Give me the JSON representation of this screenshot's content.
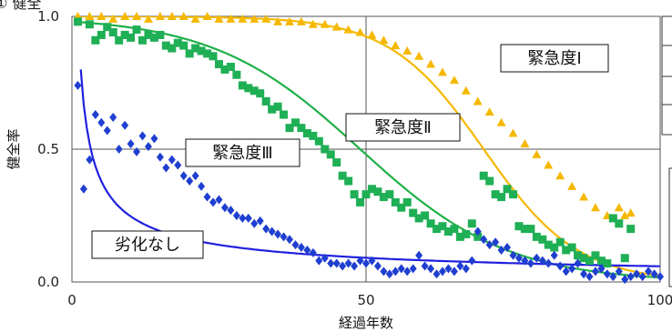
{
  "header": {
    "partial_title": "① 健全"
  },
  "chart_data": {
    "type": "scatter",
    "xlabel": "経過年数",
    "ylabel": "健全率",
    "xlim": [
      0,
      100
    ],
    "ylim": [
      0,
      1.0
    ],
    "x_ticks": [
      "0",
      "50",
      "100"
    ],
    "y_ticks": [
      "0.0",
      "0.5",
      "1.0"
    ],
    "grid": true,
    "series": [
      {
        "name": "緊急度Ⅰ",
        "marker": "triangle",
        "color": "#F5B800",
        "line_color": "#F5B800",
        "curve": {
          "type": "logistic",
          "x0": 70,
          "k": 0.125
        },
        "points": [
          [
            1,
            1.0
          ],
          [
            3,
            1.0
          ],
          [
            5,
            1.0
          ],
          [
            7,
            0.99
          ],
          [
            9,
            1.0
          ],
          [
            11,
            1.0
          ],
          [
            13,
            0.99
          ],
          [
            15,
            1.0
          ],
          [
            17,
            1.0
          ],
          [
            19,
            1.0
          ],
          [
            21,
            0.99
          ],
          [
            23,
            1.0
          ],
          [
            25,
            0.99
          ],
          [
            27,
            0.99
          ],
          [
            29,
            0.99
          ],
          [
            31,
            0.99
          ],
          [
            33,
            0.99
          ],
          [
            35,
            0.98
          ],
          [
            37,
            0.98
          ],
          [
            39,
            0.98
          ],
          [
            41,
            0.97
          ],
          [
            43,
            0.97
          ],
          [
            45,
            0.96
          ],
          [
            47,
            0.95
          ],
          [
            49,
            0.94
          ],
          [
            51,
            0.93
          ],
          [
            53,
            0.91
          ],
          [
            55,
            0.89
          ],
          [
            57,
            0.87
          ],
          [
            59,
            0.85
          ],
          [
            61,
            0.82
          ],
          [
            63,
            0.79
          ],
          [
            65,
            0.76
          ],
          [
            67,
            0.72
          ],
          [
            69,
            0.68
          ],
          [
            71,
            0.64
          ],
          [
            73,
            0.6
          ],
          [
            75,
            0.56
          ],
          [
            77,
            0.52
          ],
          [
            79,
            0.48
          ],
          [
            81,
            0.44
          ],
          [
            83,
            0.4
          ],
          [
            85,
            0.36
          ],
          [
            87,
            0.32
          ],
          [
            89,
            0.28
          ],
          [
            91,
            0.25
          ],
          [
            93,
            0.28
          ],
          [
            94,
            0.25
          ],
          [
            95,
            0.26
          ]
        ]
      },
      {
        "name": "緊急度Ⅱ",
        "marker": "square",
        "color": "#1FAF55",
        "line_color": "#1FB048",
        "curve": {
          "type": "logistic",
          "x0": 49,
          "k": 0.08
        },
        "points": [
          [
            1,
            0.98
          ],
          [
            3,
            0.97
          ],
          [
            4,
            0.91
          ],
          [
            5,
            0.93
          ],
          [
            6,
            0.96
          ],
          [
            7,
            0.94
          ],
          [
            8,
            0.91
          ],
          [
            9,
            0.93
          ],
          [
            10,
            0.92
          ],
          [
            11,
            0.95
          ],
          [
            12,
            0.91
          ],
          [
            13,
            0.93
          ],
          [
            14,
            0.92
          ],
          [
            15,
            0.93
          ],
          [
            16,
            0.89
          ],
          [
            17,
            0.88
          ],
          [
            18,
            0.9
          ],
          [
            19,
            0.89
          ],
          [
            20,
            0.86
          ],
          [
            21,
            0.88
          ],
          [
            22,
            0.87
          ],
          [
            23,
            0.86
          ],
          [
            24,
            0.85
          ],
          [
            25,
            0.82
          ],
          [
            26,
            0.8
          ],
          [
            27,
            0.81
          ],
          [
            28,
            0.78
          ],
          [
            29,
            0.74
          ],
          [
            30,
            0.73
          ],
          [
            31,
            0.72
          ],
          [
            32,
            0.71
          ],
          [
            33,
            0.68
          ],
          [
            34,
            0.65
          ],
          [
            35,
            0.66
          ],
          [
            36,
            0.63
          ],
          [
            37,
            0.58
          ],
          [
            38,
            0.6
          ],
          [
            39,
            0.58
          ],
          [
            40,
            0.56
          ],
          [
            41,
            0.55
          ],
          [
            42,
            0.53
          ],
          [
            43,
            0.5
          ],
          [
            44,
            0.48
          ],
          [
            45,
            0.45
          ],
          [
            46,
            0.4
          ],
          [
            47,
            0.38
          ],
          [
            48,
            0.33
          ],
          [
            49,
            0.3
          ],
          [
            50,
            0.33
          ],
          [
            51,
            0.35
          ],
          [
            52,
            0.34
          ],
          [
            53,
            0.32
          ],
          [
            54,
            0.33
          ],
          [
            55,
            0.3
          ],
          [
            56,
            0.28
          ],
          [
            57,
            0.3
          ],
          [
            58,
            0.26
          ],
          [
            59,
            0.24
          ],
          [
            60,
            0.25
          ],
          [
            61,
            0.22
          ],
          [
            62,
            0.2
          ],
          [
            63,
            0.21
          ],
          [
            64,
            0.19
          ],
          [
            65,
            0.2
          ],
          [
            66,
            0.17
          ],
          [
            67,
            0.18
          ],
          [
            68,
            0.22
          ],
          [
            69,
            0.17
          ],
          [
            70,
            0.4
          ],
          [
            71,
            0.38
          ],
          [
            72,
            0.33
          ],
          [
            73,
            0.32
          ],
          [
            74,
            0.35
          ],
          [
            75,
            0.33
          ],
          [
            76,
            0.21
          ],
          [
            77,
            0.2
          ],
          [
            78,
            0.2
          ],
          [
            79,
            0.17
          ],
          [
            80,
            0.16
          ],
          [
            81,
            0.14
          ],
          [
            82,
            0.13
          ],
          [
            83,
            0.15
          ],
          [
            84,
            0.12
          ],
          [
            85,
            0.13
          ],
          [
            86,
            0.1
          ],
          [
            87,
            0.09
          ],
          [
            88,
            0.08
          ],
          [
            89,
            0.1
          ],
          [
            90,
            0.08
          ],
          [
            91,
            0.07
          ],
          [
            92,
            0.24
          ],
          [
            93,
            0.22
          ],
          [
            94,
            0.09
          ],
          [
            95,
            0.2
          ]
        ]
      },
      {
        "name": "緊急度Ⅲ",
        "marker": "diamond",
        "color": "#1F3FD0",
        "line_color": "#2020E0",
        "curve": {
          "type": "power",
          "a": 0.8,
          "b": 0.62,
          "x0": 1.5
        },
        "points": [
          [
            1,
            0.74
          ],
          [
            2,
            0.35
          ],
          [
            3,
            0.46
          ],
          [
            4,
            0.63
          ],
          [
            5,
            0.6
          ],
          [
            6,
            0.57
          ],
          [
            7,
            0.62
          ],
          [
            8,
            0.5
          ],
          [
            9,
            0.59
          ],
          [
            10,
            0.52
          ],
          [
            11,
            0.49
          ],
          [
            12,
            0.55
          ],
          [
            13,
            0.51
          ],
          [
            14,
            0.54
          ],
          [
            15,
            0.47
          ],
          [
            16,
            0.43
          ],
          [
            17,
            0.46
          ],
          [
            18,
            0.44
          ],
          [
            19,
            0.4
          ],
          [
            20,
            0.38
          ],
          [
            21,
            0.4
          ],
          [
            22,
            0.36
          ],
          [
            23,
            0.32
          ],
          [
            24,
            0.3
          ],
          [
            25,
            0.31
          ],
          [
            26,
            0.28
          ],
          [
            27,
            0.27
          ],
          [
            28,
            0.25
          ],
          [
            29,
            0.24
          ],
          [
            30,
            0.24
          ],
          [
            31,
            0.22
          ],
          [
            32,
            0.23
          ],
          [
            33,
            0.2
          ],
          [
            34,
            0.19
          ],
          [
            35,
            0.18
          ],
          [
            36,
            0.17
          ],
          [
            37,
            0.16
          ],
          [
            38,
            0.14
          ],
          [
            39,
            0.13
          ],
          [
            40,
            0.12
          ],
          [
            41,
            0.11
          ],
          [
            42,
            0.08
          ],
          [
            43,
            0.09
          ],
          [
            44,
            0.07
          ],
          [
            45,
            0.07
          ],
          [
            46,
            0.06
          ],
          [
            47,
            0.07
          ],
          [
            48,
            0.06
          ],
          [
            49,
            0.08
          ],
          [
            50,
            0.07
          ],
          [
            51,
            0.08
          ],
          [
            52,
            0.06
          ],
          [
            53,
            0.04
          ],
          [
            54,
            0.03
          ],
          [
            55,
            0.04
          ],
          [
            56,
            0.05
          ],
          [
            57,
            0.04
          ],
          [
            58,
            0.05
          ],
          [
            59,
            0.1
          ],
          [
            60,
            0.06
          ],
          [
            61,
            0.05
          ],
          [
            62,
            0.03
          ],
          [
            63,
            0.04
          ],
          [
            64,
            0.05
          ],
          [
            65,
            0.04
          ],
          [
            66,
            0.06
          ],
          [
            67,
            0.05
          ],
          [
            68,
            0.08
          ],
          [
            69,
            0.19
          ],
          [
            70,
            0.16
          ],
          [
            71,
            0.14
          ],
          [
            72,
            0.15
          ],
          [
            73,
            0.12
          ],
          [
            74,
            0.13
          ],
          [
            75,
            0.1
          ],
          [
            76,
            0.09
          ],
          [
            77,
            0.08
          ],
          [
            78,
            0.07
          ],
          [
            79,
            0.09
          ],
          [
            80,
            0.08
          ],
          [
            81,
            0.07
          ],
          [
            82,
            0.1
          ],
          [
            83,
            0.06
          ],
          [
            84,
            0.04
          ],
          [
            85,
            0.05
          ],
          [
            86,
            0.07
          ],
          [
            87,
            0.03
          ],
          [
            88,
            0.02
          ],
          [
            89,
            0.04
          ],
          [
            90,
            0.05
          ],
          [
            91,
            0.03
          ],
          [
            92,
            0.02
          ],
          [
            93,
            0.04
          ],
          [
            94,
            0.01
          ],
          [
            95,
            0.02
          ],
          [
            96,
            0.03
          ],
          [
            97,
            0.02
          ],
          [
            98,
            0.04
          ],
          [
            99,
            0.03
          ],
          [
            100,
            0.02
          ]
        ]
      },
      {
        "name": "劣化なし",
        "marker": "none",
        "color": "#1F3FD0",
        "line_color": "#2020E0",
        "points": []
      }
    ],
    "annotations": [
      "緊急度Ⅰ",
      "緊急度Ⅱ",
      "緊急度Ⅲ",
      "劣化なし"
    ]
  }
}
